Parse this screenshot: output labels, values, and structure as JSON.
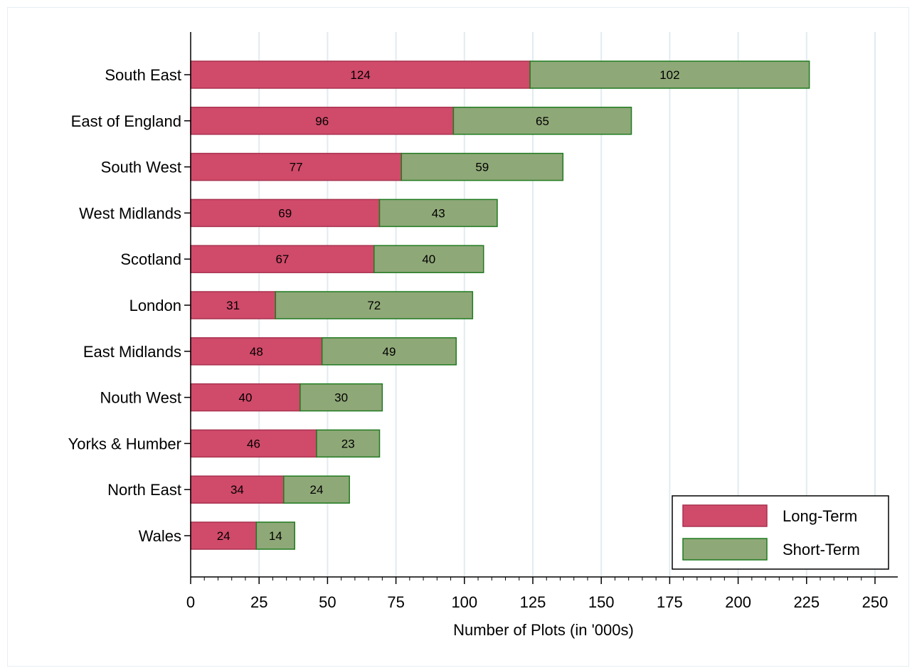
{
  "chart_data": {
    "type": "bar",
    "orientation": "horizontal",
    "stacked": true,
    "categories": [
      "South East",
      "East of England",
      "South West",
      "West Midlands",
      "Scotland",
      "London",
      "East Midlands",
      "Nouth West",
      "Yorks & Humber",
      "North East",
      "Wales"
    ],
    "series": [
      {
        "name": "Long-Term",
        "values": [
          124,
          96,
          77,
          69,
          67,
          31,
          48,
          40,
          46,
          34,
          24
        ],
        "color": "#d04a6a",
        "edge": "#a8324f"
      },
      {
        "name": "Short-Term",
        "values": [
          102,
          65,
          59,
          43,
          40,
          72,
          49,
          30,
          23,
          24,
          14
        ],
        "color": "#8fa878",
        "edge": "#1f7a1f"
      }
    ],
    "xlabel": "Number of Plots (in '000s)",
    "xlim": [
      0,
      250
    ],
    "xticks": [
      0,
      25,
      50,
      75,
      100,
      125,
      150,
      175,
      200,
      225,
      250
    ],
    "grid": "vertical",
    "legend": "bottom-right"
  }
}
